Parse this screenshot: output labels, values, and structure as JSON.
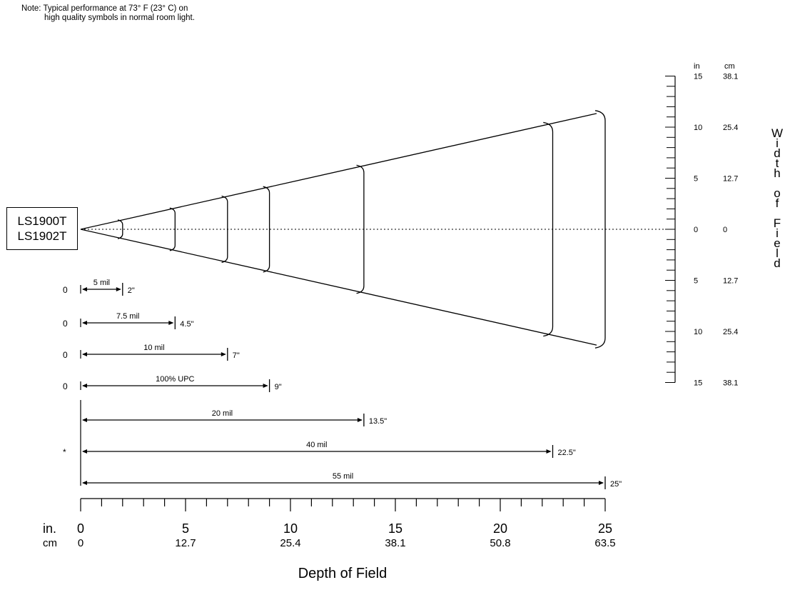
{
  "note": {
    "line1": "Note:  Typical performance at 73° F (23° C) on",
    "line2": "high quality symbols in normal room light."
  },
  "scanner": {
    "line1": "LS1900T",
    "line2": "LS1902T"
  },
  "width_axis": {
    "title_letters": [
      "W",
      "i",
      "d",
      "t",
      "h",
      "",
      "o",
      "f",
      "",
      "F",
      "i",
      "e",
      "l",
      "d"
    ],
    "unit_in": "in",
    "unit_cm": "cm",
    "ticks": [
      {
        "in": "15",
        "cm": "38.1",
        "pos": 15
      },
      {
        "in": "10",
        "cm": "25.4",
        "pos": 10
      },
      {
        "in": "5",
        "cm": "12.7",
        "pos": 5
      },
      {
        "in": "0",
        "cm": "0",
        "pos": 0
      },
      {
        "in": "5",
        "cm": "12.7",
        "pos": -5
      },
      {
        "in": "10",
        "cm": "25.4",
        "pos": -10
      },
      {
        "in": "15",
        "cm": "38.1",
        "pos": -15
      }
    ]
  },
  "depth_axis": {
    "title": "Depth of Field",
    "unit_in": "in.",
    "unit_cm": "cm",
    "max": 25,
    "ticks": [
      {
        "in": "0",
        "cm": "0",
        "v": 0
      },
      {
        "in": "5",
        "cm": "12.7",
        "v": 5
      },
      {
        "in": "10",
        "cm": "25.4",
        "v": 10
      },
      {
        "in": "15",
        "cm": "38.1",
        "v": 15
      },
      {
        "in": "20",
        "cm": "50.8",
        "v": 20
      },
      {
        "in": "25",
        "cm": "63.5",
        "v": 25
      }
    ]
  },
  "ranges": [
    {
      "label": "5 mil",
      "start": "0",
      "end": 0,
      "start_val": 0,
      "max": 2,
      "max_label": "2\""
    },
    {
      "label": "7.5 mil",
      "start": "0",
      "start_val": 0,
      "max": 4.5,
      "max_label": "4.5\""
    },
    {
      "label": "10 mil",
      "start": "0",
      "start_val": 0,
      "max": 7,
      "max_label": "7\""
    },
    {
      "label": "100% UPC",
      "start": "0",
      "start_val": 0,
      "max": 9,
      "max_label": "9\""
    },
    {
      "label": "20 mil",
      "start": "",
      "start_val": 0,
      "max": 13.5,
      "max_label": "13.5\""
    },
    {
      "label": "40 mil",
      "start": "*",
      "start_val": 0,
      "max": 22.5,
      "max_label": "22.5\""
    },
    {
      "label": "55 mil",
      "start": "",
      "start_val": 0,
      "max": 25,
      "max_label": "25\""
    }
  ],
  "cone_widths_in": [
    0.6,
    3,
    4,
    5,
    7,
    12.5,
    14
  ]
}
